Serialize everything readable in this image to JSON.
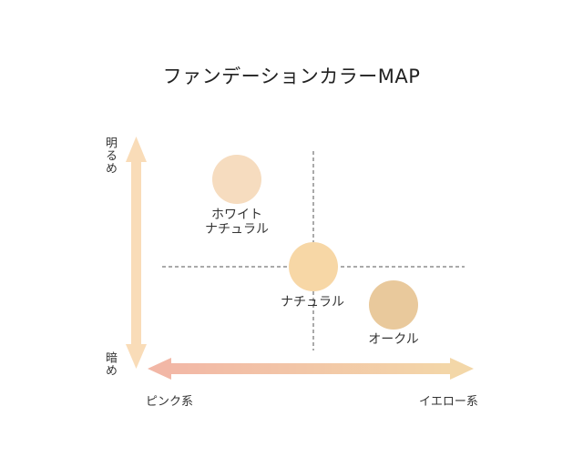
{
  "title": "ファンデーションカラーMAP",
  "axes": {
    "vertical_top": "明るめ",
    "vertical_bottom": "暗め",
    "horizontal_left": "ピンク系",
    "horizontal_right": "イエロー系",
    "vertical_color": "#f9dcb8",
    "horizontal_gradient": [
      "#f2b7a6",
      "#f3d7a8"
    ]
  },
  "shades": [
    {
      "lines": [
        "ホワイト",
        "ナチュラル"
      ],
      "color": "#f6dcbf"
    },
    {
      "lines": [
        "ナチュラル"
      ],
      "color": "#f7d7a6"
    },
    {
      "lines": [
        "オークル"
      ],
      "color": "#e9c99c"
    }
  ],
  "dashed_line_color": "#555555"
}
